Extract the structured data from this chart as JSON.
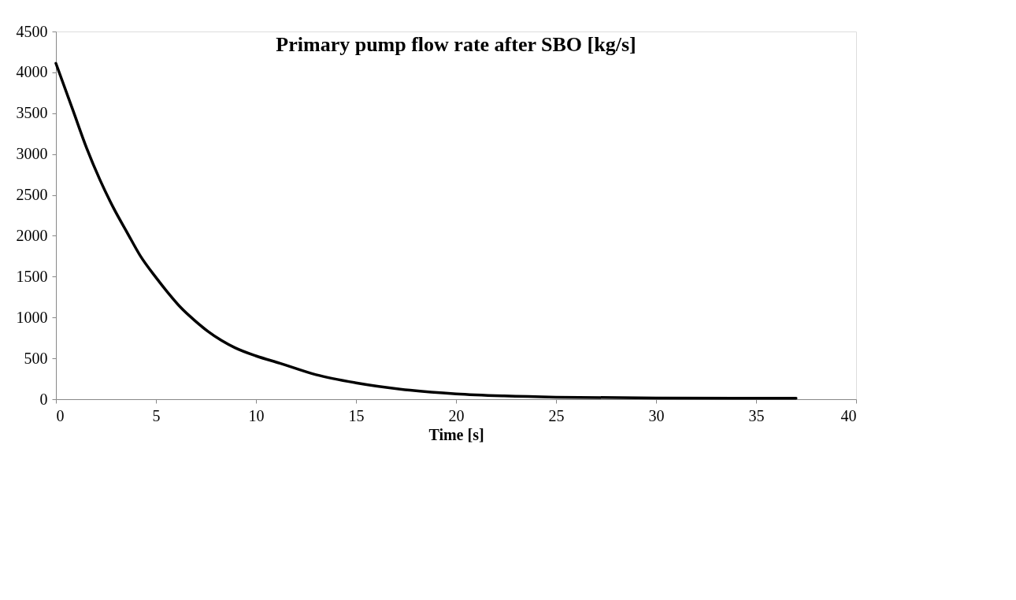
{
  "chart_data": {
    "type": "line",
    "title": "Primary  pump flow rate after SBO [kg/s]",
    "xlabel": "Time [s]",
    "x": [
      0,
      0.86,
      1.54,
      2.21,
      2.88,
      3.56,
      4.23,
      5,
      5.58,
      6.25,
      6.93,
      7.6,
      8.27,
      8.95,
      10,
      11.2,
      13,
      15,
      17.7,
      20,
      22.4,
      25,
      30,
      37
    ],
    "series": [
      {
        "color": "#000000",
        "values": [
          4110,
          3530,
          3070,
          2680,
          2340,
          2040,
          1750,
          1490,
          1310,
          1120,
          965,
          830,
          720,
          630,
          530,
          440,
          300,
          200,
          110,
          65,
          40,
          25,
          15,
          12
        ]
      }
    ],
    "xlim": [
      0,
      40
    ],
    "xticks": [
      0,
      5,
      10,
      15,
      20,
      25,
      30,
      35,
      40
    ],
    "ylim": [
      0,
      4500
    ],
    "yticks": [
      0,
      500,
      1000,
      1500,
      2000,
      2500,
      3000,
      3500,
      4000,
      4500
    ],
    "grid": false,
    "marker": "none",
    "line_style": "solid"
  }
}
